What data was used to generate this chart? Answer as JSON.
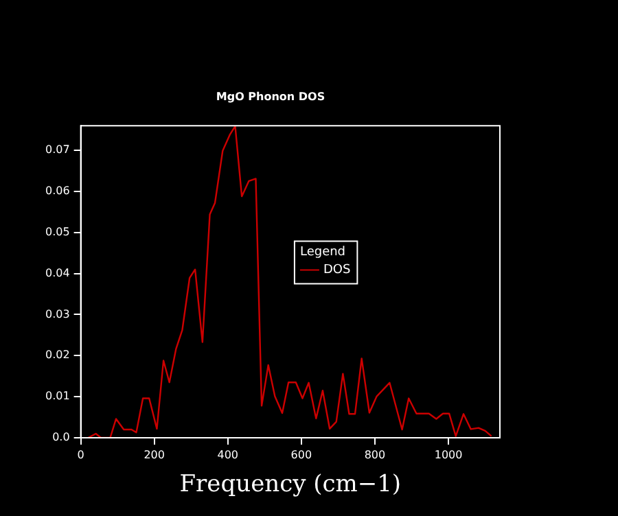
{
  "chart_data": {
    "type": "line",
    "title": "MgO Phonon DOS",
    "xlabel": "Frequency (cm−1)",
    "legend_title": "Legend",
    "legend": "right",
    "grid": false,
    "marker": "none",
    "line_style": "solid",
    "xlim": [
      0,
      1140
    ],
    "ylim": [
      0,
      0.076
    ],
    "xticks": [
      0,
      200,
      400,
      600,
      800,
      1000
    ],
    "yticks": [
      {
        "value": 0,
        "label": "0.0"
      },
      0.01,
      0.02,
      0.03,
      0.04,
      0.05,
      0.06,
      0.07
    ],
    "x": [
      20,
      41,
      55,
      80,
      96,
      117,
      138,
      151,
      169,
      186,
      207,
      225,
      241,
      259,
      276,
      296,
      311,
      331,
      351,
      365,
      386,
      406,
      420,
      438,
      457,
      476,
      492,
      510,
      528,
      548,
      565,
      585,
      603,
      620,
      640,
      658,
      677,
      695,
      713,
      730,
      746,
      764,
      785,
      805,
      840,
      874,
      892,
      913,
      947,
      967,
      985,
      1002,
      1020,
      1041,
      1061,
      1082,
      1100,
      1117
    ],
    "series": [
      {
        "name": "DOS",
        "color": "#cc0000",
        "values": [
          0,
          0.001,
          0,
          0,
          0.0046,
          0.002,
          0.002,
          0.0013,
          0.0096,
          0.0096,
          0.0022,
          0.0188,
          0.0135,
          0.0216,
          0.0262,
          0.0389,
          0.041,
          0.0233,
          0.0544,
          0.0572,
          0.0699,
          0.0739,
          0.0759,
          0.0588,
          0.0625,
          0.0631,
          0.0078,
          0.0177,
          0.0101,
          0.006,
          0.0135,
          0.0135,
          0.0096,
          0.0134,
          0.0047,
          0.0115,
          0.0022,
          0.0039,
          0.0156,
          0.0058,
          0.0058,
          0.0193,
          0.0061,
          0.0101,
          0.0134,
          0.002,
          0.0096,
          0.0059,
          0.0059,
          0.0046,
          0.0059,
          0.0059,
          0.0004,
          0.0058,
          0.0021,
          0.0024,
          0.0017,
          0.0004
        ]
      }
    ]
  }
}
